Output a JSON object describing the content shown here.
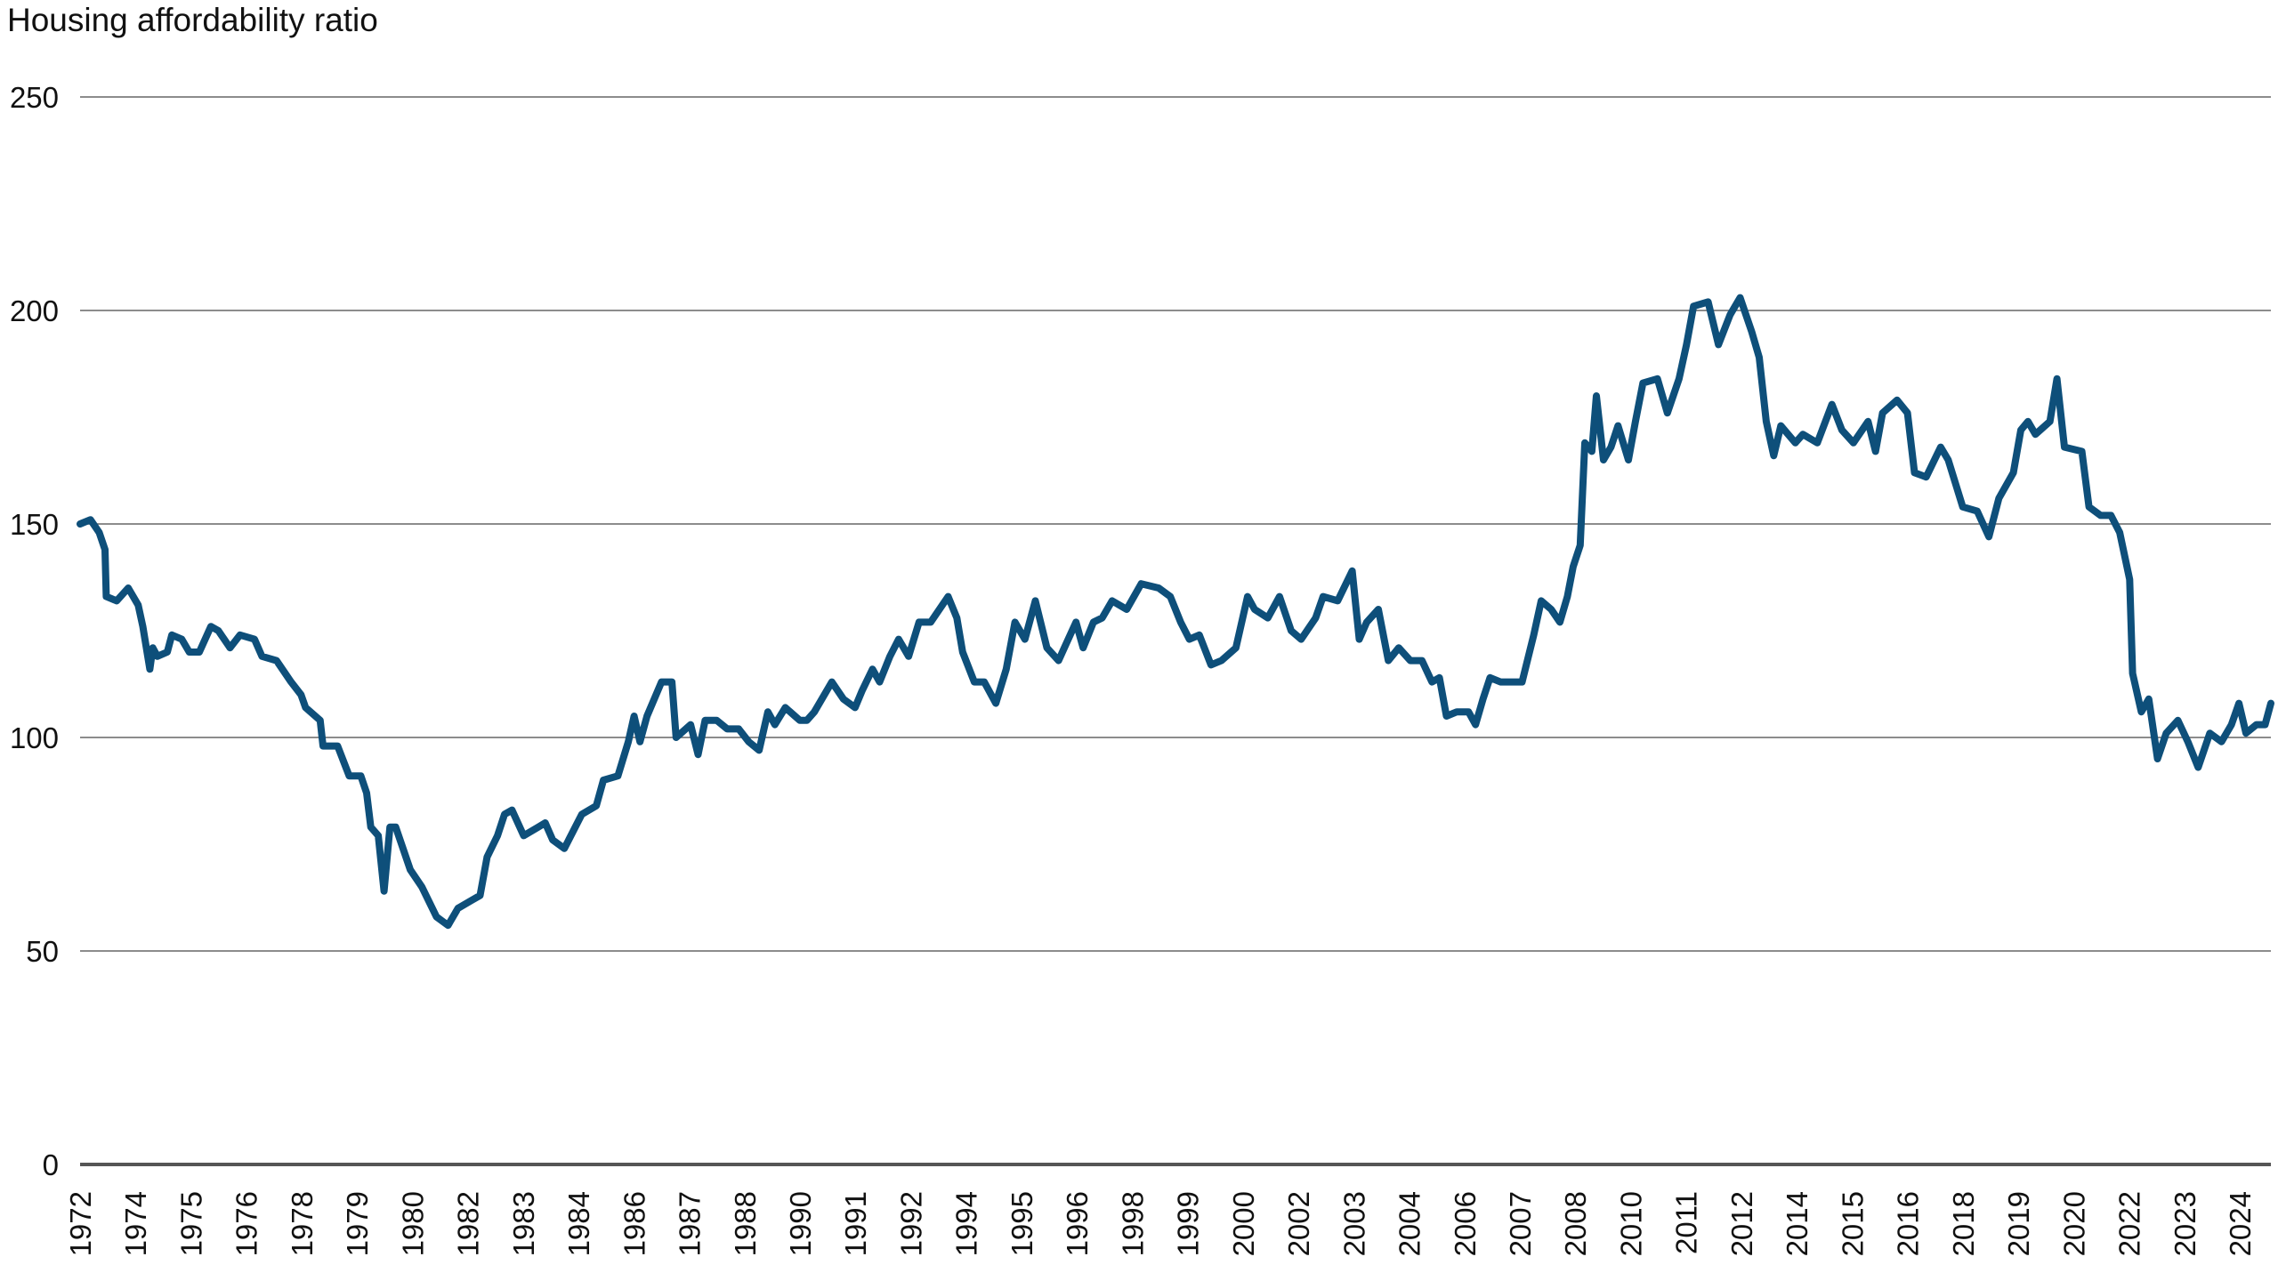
{
  "chart_data": {
    "type": "line",
    "title": "Housing affordability ratio",
    "xlabel": "",
    "ylabel": "",
    "ylim": [
      0,
      250
    ],
    "yticks": [
      0,
      50,
      100,
      150,
      200,
      250
    ],
    "xlim": [
      1972,
      2024.75
    ],
    "xtick_labels": [
      "1972",
      "1974",
      "1975",
      "1976",
      "1978",
      "1979",
      "1980",
      "1982",
      "1983",
      "1984",
      "1986",
      "1987",
      "1988",
      "1990",
      "1991",
      "1992",
      "1994",
      "1995",
      "1996",
      "1998",
      "1999",
      "2000",
      "2002",
      "2003",
      "2004",
      "2006",
      "2007",
      "2008",
      "2010",
      "2011",
      "2012",
      "2014",
      "2015",
      "2016",
      "2018",
      "2019",
      "2020",
      "2022",
      "2023",
      "2024"
    ],
    "grid": "horizontal",
    "line_color": "#0e4f7a",
    "series": [
      {
        "x": [
          1972.0,
          1972.25,
          1972.46,
          1972.6,
          1972.63,
          1972.88,
          1973.16,
          1973.4,
          1973.51,
          1973.68,
          1973.75,
          1973.86,
          1974.1,
          1974.21,
          1974.45,
          1974.63,
          1974.87,
          1975.15,
          1975.33,
          1975.61,
          1975.85,
          1976.2,
          1976.38,
          1976.73,
          1977.08,
          1977.32,
          1977.43,
          1977.78,
          1977.85,
          1978.2,
          1978.48,
          1978.76,
          1978.9,
          1979.0,
          1979.18,
          1979.32,
          1979.46,
          1979.6,
          1979.95,
          1980.23,
          1980.58,
          1980.86,
          1981.1,
          1981.45,
          1981.63,
          1981.8,
          1982.05,
          1982.22,
          1982.4,
          1982.68,
          1983.03,
          1983.2,
          1983.38,
          1983.66,
          1984.08,
          1984.43,
          1984.6,
          1984.95,
          1985.2,
          1985.34,
          1985.48,
          1985.65,
          1986.0,
          1986.25,
          1986.35,
          1986.7,
          1986.88,
          1987.05,
          1987.33,
          1987.58,
          1987.86,
          1988.1,
          1988.35,
          1988.56,
          1988.73,
          1988.98,
          1989.33,
          1989.5,
          1989.68,
          1990.1,
          1990.38,
          1990.66,
          1990.83,
          1991.08,
          1991.25,
          1991.5,
          1991.71,
          1991.95,
          1992.2,
          1992.48,
          1992.9,
          1993.11,
          1993.25,
          1993.53,
          1993.77,
          1994.05,
          1994.3,
          1994.51,
          1994.75,
          1995.0,
          1995.28,
          1995.56,
          1995.7,
          1995.98,
          1996.15,
          1996.4,
          1996.61,
          1996.85,
          1997.2,
          1997.55,
          1997.97,
          1998.25,
          1998.5,
          1998.71,
          1998.95,
          1999.23,
          1999.48,
          1999.83,
          2000.11,
          2000.28,
          2000.6,
          2000.88,
          2001.16,
          2001.4,
          2001.75,
          2001.93,
          2002.28,
          2002.63,
          2002.8,
          2002.98,
          2003.26,
          2003.5,
          2003.75,
          2004.03,
          2004.31,
          2004.55,
          2004.73,
          2004.9,
          2005.15,
          2005.43,
          2005.6,
          2005.78,
          2005.95,
          2006.2,
          2006.48,
          2006.72,
          2007.0,
          2007.18,
          2007.42,
          2007.63,
          2007.81,
          2007.95,
          2008.12,
          2008.23,
          2008.4,
          2008.51,
          2008.68,
          2008.86,
          2009.03,
          2009.28,
          2009.45,
          2009.63,
          2009.98,
          2010.22,
          2010.5,
          2010.68,
          2010.85,
          2011.2,
          2011.45,
          2011.73,
          2011.97,
          2012.25,
          2012.43,
          2012.6,
          2012.78,
          2012.95,
          2013.3,
          2013.48,
          2013.83,
          2014.18,
          2014.42,
          2014.7,
          2015.05,
          2015.23,
          2015.4,
          2015.75,
          2016.0,
          2016.17,
          2016.45,
          2016.8,
          2016.98,
          2017.33,
          2017.68,
          2017.96,
          2018.2,
          2018.55,
          2018.73,
          2018.9,
          2019.08,
          2019.43,
          2019.6,
          2019.78,
          2020.2,
          2020.37,
          2020.65,
          2020.9,
          2021.11,
          2021.35,
          2021.42,
          2021.63,
          2021.81,
          2022.02,
          2022.23,
          2022.51,
          2022.75,
          2023.0,
          2023.28,
          2023.56,
          2023.8,
          2023.98,
          2024.15,
          2024.4,
          2024.61,
          2024.75
        ],
        "y": [
          150,
          151,
          148,
          144,
          133,
          132,
          135,
          131,
          126,
          116,
          121,
          119,
          120,
          124,
          123,
          120,
          120,
          126,
          125,
          121,
          124,
          123,
          119,
          118,
          113,
          110,
          107,
          104,
          98,
          98,
          91,
          91,
          87,
          79,
          77,
          64,
          79,
          79,
          69,
          65,
          58,
          56,
          60,
          62,
          63,
          72,
          77,
          82,
          83,
          77,
          79,
          80,
          76,
          74,
          82,
          84,
          90,
          91,
          99,
          105,
          99,
          105,
          113,
          113,
          100,
          103,
          96,
          104,
          104,
          102,
          102,
          99,
          97,
          106,
          103,
          107,
          104,
          104,
          106,
          113,
          109,
          107,
          111,
          116,
          113,
          119,
          123,
          119,
          127,
          127,
          133,
          128,
          120,
          113,
          113,
          108,
          116,
          127,
          123,
          132,
          121,
          118,
          121,
          127,
          121,
          127,
          128,
          132,
          130,
          136,
          135,
          133,
          127,
          123,
          124,
          117,
          118,
          121,
          133,
          130,
          128,
          133,
          125,
          123,
          128,
          133,
          132,
          139,
          123,
          127,
          130,
          118,
          121,
          118,
          118,
          113,
          114,
          105,
          106,
          106,
          103,
          109,
          114,
          113,
          113,
          113,
          124,
          132,
          130,
          127,
          133,
          140,
          145,
          169,
          167,
          180,
          165,
          168,
          173,
          165,
          174,
          183,
          184,
          176,
          184,
          192,
          201,
          202,
          192,
          199,
          203,
          195,
          189,
          174,
          166,
          173,
          169,
          171,
          169,
          178,
          172,
          169,
          174,
          167,
          176,
          179,
          176,
          162,
          161,
          168,
          165,
          154,
          153,
          147,
          156,
          162,
          172,
          174,
          171,
          174,
          184,
          168,
          167,
          154,
          152,
          152,
          148,
          137,
          115,
          106,
          109,
          95,
          101,
          104,
          99,
          93,
          101,
          99,
          103,
          108,
          101,
          103,
          103,
          108
        ]
      }
    ]
  }
}
